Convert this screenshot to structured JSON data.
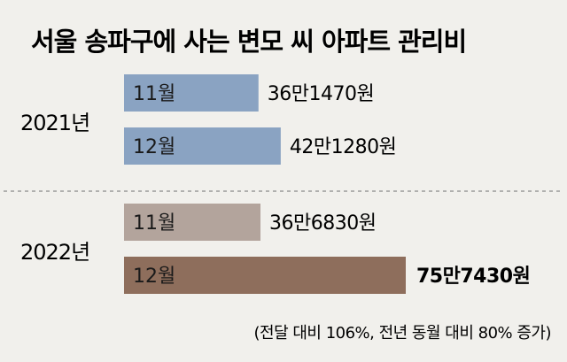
{
  "title": "서울 송파구에 사는 변모 씨 아파트 관리비",
  "footnote": "(전달 대비 106%, 전년 동월 대비 80% 증가)",
  "colors": {
    "background": "#f1f0ec",
    "bar_2021": "#8aa3c2",
    "bar_2022_nov": "#b3a49c",
    "bar_2022_dec": "#8e6e5c",
    "divider": "#9a9a9a"
  },
  "chart_data": {
    "type": "bar",
    "orientation": "horizontal",
    "title": "서울 송파구에 사는 변모 씨 아파트 관리비",
    "groups": [
      {
        "year": "2021년",
        "bars": [
          {
            "month": "11월",
            "value": 361470,
            "label": "36만1470원",
            "highlight": false,
            "color": "#8aa3c2"
          },
          {
            "month": "12월",
            "value": 421280,
            "label": "42만1280원",
            "highlight": false,
            "color": "#8aa3c2"
          }
        ]
      },
      {
        "year": "2022년",
        "bars": [
          {
            "month": "11월",
            "value": 366830,
            "label": "36만6830원",
            "highlight": false,
            "color": "#b3a49c"
          },
          {
            "month": "12월",
            "value": 757430,
            "label": "75만7430원",
            "highlight": true,
            "color": "#8e6e5c"
          }
        ]
      }
    ],
    "annotation": "(전달 대비 106%, 전년 동월 대비 80% 증가)"
  }
}
